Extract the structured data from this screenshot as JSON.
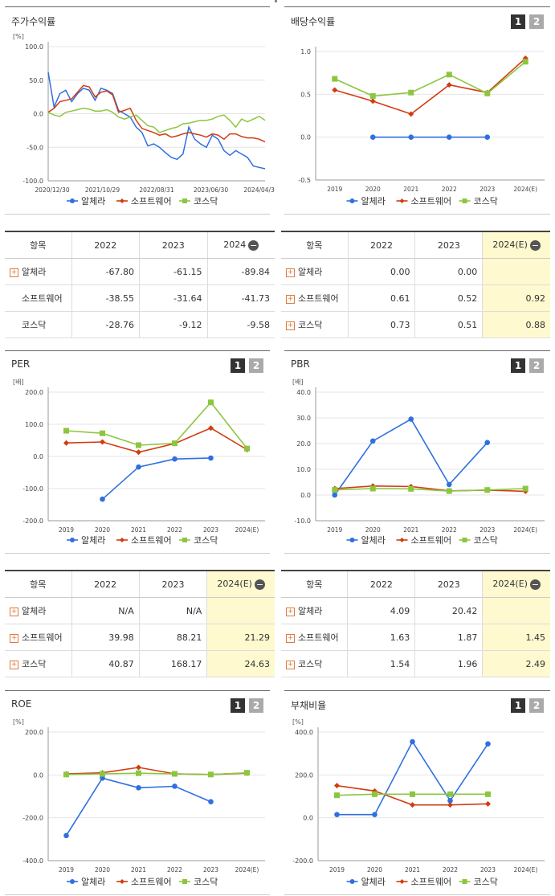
{
  "legend": [
    "알체라",
    "소프트웨어",
    "코스닥"
  ],
  "colors": {
    "s0": "#2f6fe0",
    "s1": "#d23c10",
    "s2": "#8cc63f",
    "hl": "#fef9cf"
  },
  "icons": {
    "plus": "plus-icon",
    "minus": "minus-circle-icon"
  },
  "tabs": [
    "1",
    "2"
  ],
  "charts": {
    "stock": {
      "title": "주가수익률",
      "unit": "[%]",
      "chart_data": {
        "type": "line",
        "ylim": [
          -100,
          100
        ],
        "yticks": [
          "100.0",
          "50.0",
          "0.0",
          "-50.0",
          "-100.0"
        ],
        "xticks": [
          "2020/12/30",
          "2021/10/29",
          "2022/08/31",
          "2023/06/30",
          "2024/04/30"
        ],
        "series": [
          {
            "name": "알체라",
            "values": [
              62,
              10,
              30,
              35,
              18,
              30,
              38,
              35,
              20,
              38,
              35,
              30,
              5,
              0,
              -5,
              -20,
              -28,
              -48,
              -45,
              -50,
              -58,
              -65,
              -68,
              -60,
              -20,
              -38,
              -45,
              -50,
              -32,
              -38,
              -55,
              -62,
              -55,
              -60,
              -65,
              -78,
              -80,
              -82
            ]
          },
          {
            "name": "소프트웨어",
            "values": [
              2,
              8,
              18,
              20,
              22,
              32,
              42,
              40,
              25,
              32,
              34,
              28,
              2,
              5,
              8,
              -10,
              -22,
              -25,
              -28,
              -32,
              -30,
              -35,
              -33,
              -30,
              -28,
              -30,
              -32,
              -35,
              -30,
              -32,
              -38,
              -30,
              -30,
              -34,
              -36,
              -36,
              -38,
              -42
            ]
          },
          {
            "name": "코스닥",
            "values": [
              2,
              -2,
              -4,
              2,
              4,
              6,
              8,
              7,
              4,
              4,
              6,
              2,
              -5,
              -8,
              -5,
              -2,
              -10,
              -18,
              -20,
              -28,
              -25,
              -22,
              -20,
              -15,
              -14,
              -12,
              -10,
              -10,
              -8,
              -4,
              -2,
              -10,
              -20,
              -8,
              -12,
              -8,
              -4,
              -10
            ]
          }
        ]
      }
    },
    "div": {
      "title": "배당수익률",
      "chart_data": {
        "type": "line",
        "ylim": [
          -0.5,
          1.0
        ],
        "yticks": [
          "1.0",
          "0.5",
          "0.0",
          "-0.5"
        ],
        "categories": [
          "2019",
          "2020",
          "2021",
          "2022",
          "2023",
          "2024(E)"
        ],
        "series": [
          {
            "name": "알체라",
            "values": [
              null,
              0.0,
              0.0,
              0.0,
              0.0,
              null
            ]
          },
          {
            "name": "소프트웨어",
            "values": [
              0.55,
              0.42,
              0.27,
              0.61,
              0.52,
              0.92
            ]
          },
          {
            "name": "코스닥",
            "values": [
              0.68,
              0.48,
              0.52,
              0.73,
              0.51,
              0.88
            ]
          }
        ]
      }
    },
    "per": {
      "title": "PER",
      "unit": "[배]",
      "chart_data": {
        "type": "line",
        "ylim": [
          -200,
          200
        ],
        "yticks": [
          "200.0",
          "100.0",
          "0.0",
          "-100.0",
          "-200.0"
        ],
        "categories": [
          "2019",
          "2020",
          "2021",
          "2022",
          "2023",
          "2024(E)"
        ],
        "series": [
          {
            "name": "알체라",
            "values": [
              null,
              -133,
              -33,
              -8,
              -5,
              null
            ]
          },
          {
            "name": "소프트웨어",
            "values": [
              42,
              45,
              13,
              39.98,
              88.21,
              21.29
            ]
          },
          {
            "name": "코스닥",
            "values": [
              80,
              72,
              35,
              40.87,
              168.17,
              24.63
            ]
          }
        ]
      }
    },
    "pbr": {
      "title": "PBR",
      "unit": "[배]",
      "chart_data": {
        "type": "line",
        "ylim": [
          -10,
          40
        ],
        "yticks": [
          "40.0",
          "30.0",
          "20.0",
          "10.0",
          "0.0",
          "-10.0"
        ],
        "categories": [
          "2019",
          "2020",
          "2021",
          "2022",
          "2023",
          "2024(E)"
        ],
        "series": [
          {
            "name": "알체라",
            "values": [
              0,
              21,
              29.5,
              4.09,
              20.42,
              null
            ]
          },
          {
            "name": "소프트웨어",
            "values": [
              2.5,
              3.5,
              3.3,
              1.63,
              1.87,
              1.45
            ]
          },
          {
            "name": "코스닥",
            "values": [
              2,
              2.5,
              2.4,
              1.54,
              1.96,
              2.49
            ]
          }
        ]
      }
    },
    "roe": {
      "title": "ROE",
      "unit": "[%]",
      "chart_data": {
        "type": "line",
        "ylim": [
          -400,
          200
        ],
        "yticks": [
          "200.0",
          "0.0",
          "-200.0",
          "-400.0"
        ],
        "categories": [
          "2019",
          "2020",
          "2021",
          "2022",
          "2023",
          "2024(E)"
        ],
        "series": [
          {
            "name": "알체라",
            "values": [
              -283,
              -15,
              -60,
              -53,
              -125,
              null
            ]
          },
          {
            "name": "소프트웨어",
            "values": [
              5,
              10,
              35,
              5,
              2,
              8
            ]
          },
          {
            "name": "코스닥",
            "values": [
              2,
              5,
              8,
              5,
              2,
              10
            ]
          }
        ]
      }
    },
    "debt": {
      "title": "부채비율",
      "unit": "[%]",
      "chart_data": {
        "type": "line",
        "ylim": [
          -200,
          400
        ],
        "yticks": [
          "400.0",
          "200.0",
          "0.0",
          "-200.0"
        ],
        "categories": [
          "2019",
          "2020",
          "2021",
          "2022",
          "2023",
          "2024(E)"
        ],
        "series": [
          {
            "name": "알체라",
            "values": [
              15,
              15,
              355,
              80,
              345,
              null
            ]
          },
          {
            "name": "소프트웨어",
            "values": [
              150,
              125,
              60,
              60,
              65,
              null
            ]
          },
          {
            "name": "코스닥",
            "values": [
              105,
              110,
              110,
              110,
              110,
              null
            ]
          }
        ]
      }
    }
  },
  "tables": {
    "stock": {
      "headers": [
        "항목",
        "2022",
        "2023",
        "2024"
      ],
      "rows": [
        {
          "name": "알체라",
          "plus": true,
          "values": [
            "-67.80",
            "-61.15",
            "-89.84"
          ]
        },
        {
          "name": "소프트웨어",
          "plus": false,
          "values": [
            "-38.55",
            "-31.64",
            "-41.73"
          ]
        },
        {
          "name": "코스닥",
          "plus": false,
          "values": [
            "-28.76",
            "-9.12",
            "-9.58"
          ]
        }
      ]
    },
    "div": {
      "headers": [
        "항목",
        "2022",
        "2023",
        "2024(E)"
      ],
      "rows": [
        {
          "name": "알체라",
          "plus": true,
          "values": [
            "0.00",
            "0.00",
            ""
          ]
        },
        {
          "name": "소프트웨어",
          "plus": true,
          "values": [
            "0.61",
            "0.52",
            "0.92"
          ]
        },
        {
          "name": "코스닥",
          "plus": true,
          "values": [
            "0.73",
            "0.51",
            "0.88"
          ]
        }
      ]
    },
    "per": {
      "headers": [
        "항목",
        "2022",
        "2023",
        "2024(E)"
      ],
      "rows": [
        {
          "name": "알체라",
          "plus": true,
          "values": [
            "N/A",
            "N/A",
            ""
          ]
        },
        {
          "name": "소프트웨어",
          "plus": true,
          "values": [
            "39.98",
            "88.21",
            "21.29"
          ]
        },
        {
          "name": "코스닥",
          "plus": true,
          "values": [
            "40.87",
            "168.17",
            "24.63"
          ]
        }
      ]
    },
    "pbr": {
      "headers": [
        "항목",
        "2022",
        "2023",
        "2024(E)"
      ],
      "rows": [
        {
          "name": "알체라",
          "plus": true,
          "values": [
            "4.09",
            "20.42",
            ""
          ]
        },
        {
          "name": "소프트웨어",
          "plus": true,
          "values": [
            "1.63",
            "1.87",
            "1.45"
          ]
        },
        {
          "name": "코스닥",
          "plus": true,
          "values": [
            "1.54",
            "1.96",
            "2.49"
          ]
        }
      ]
    }
  }
}
